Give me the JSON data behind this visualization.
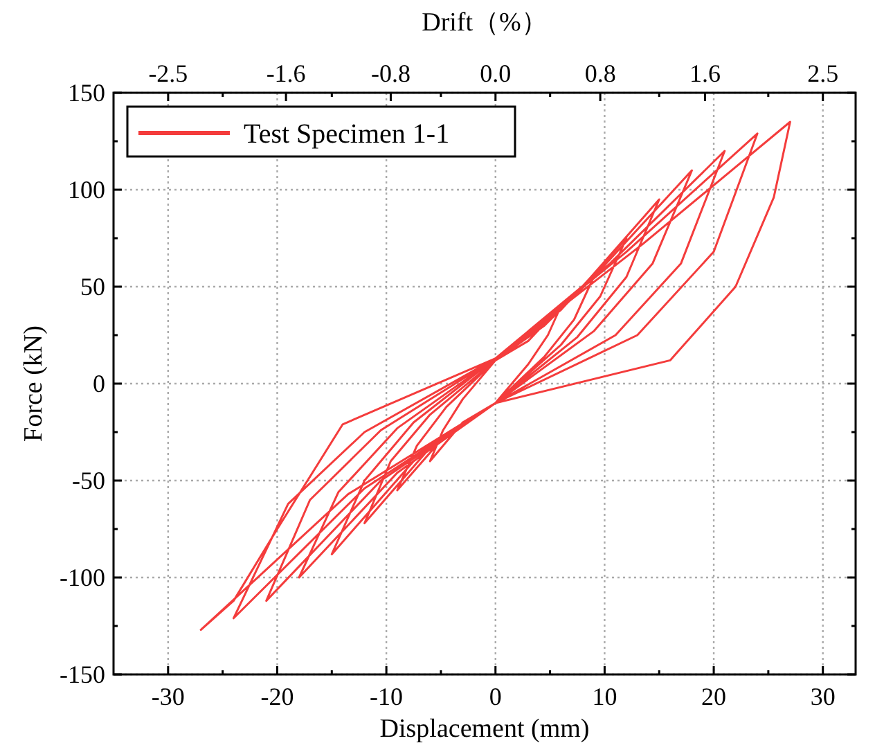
{
  "chart_data": {
    "type": "line",
    "xlabel": "Displacement (mm)",
    "ylabel": "Force (kN)",
    "x2label": "Drift（%）",
    "xlim": [
      -35,
      33
    ],
    "ylim": [
      -150,
      150
    ],
    "xticks": [
      -30,
      {
        "value": -25,
        "label": null
      },
      -20,
      {
        "value": -15,
        "label": null
      },
      -10,
      {
        "value": -5,
        "label": null
      },
      0,
      {
        "value": 5,
        "label": null
      },
      10,
      {
        "value": 15,
        "label": null
      },
      20,
      {
        "value": 25,
        "label": null
      },
      30
    ],
    "yticks": [
      -150,
      {
        "value": -125,
        "label": null
      },
      -100,
      {
        "value": -75,
        "label": null
      },
      -50,
      {
        "value": -25,
        "label": null
      },
      0,
      {
        "value": 25,
        "label": null
      },
      50,
      {
        "value": 75,
        "label": null
      },
      100,
      {
        "value": 125,
        "label": null
      },
      150
    ],
    "x2lim": [
      -2.917,
      2.75
    ],
    "x2ticks": [
      {
        "value": -2.5,
        "label": "-2.5"
      },
      {
        "value": -2.083,
        "label": null
      },
      {
        "value": -1.6,
        "label": "-1.6"
      },
      {
        "value": -1.25,
        "label": null
      },
      {
        "value": -0.8,
        "label": "-0.8"
      },
      {
        "value": -0.417,
        "label": null
      },
      {
        "value": 0,
        "label": "0.0"
      },
      {
        "value": 0.417,
        "label": null
      },
      {
        "value": 0.8,
        "label": "0.8"
      },
      {
        "value": 1.25,
        "label": null
      },
      {
        "value": 1.6,
        "label": "1.6"
      },
      {
        "value": 2.083,
        "label": null
      },
      {
        "value": 2.5,
        "label": "2.5"
      }
    ],
    "grid": true,
    "legend": "top left",
    "marker": "none",
    "line_style": "solid",
    "series": [
      {
        "name": "Test Specimen 1-1",
        "color": "#f43c3c",
        "x": [
          0,
          3,
          6,
          4.8,
          3,
          0,
          -3,
          -6,
          -4.8,
          -3,
          0,
          4.5,
          9,
          7.2,
          4.5,
          0,
          -4.5,
          -9,
          -7.2,
          -4.5,
          0,
          6,
          12,
          9.6,
          6,
          0,
          -6,
          -12,
          -9.6,
          -6,
          0,
          7.5,
          15,
          12,
          7.5,
          0,
          -7.5,
          -15,
          -12,
          -7.5,
          0,
          9,
          18,
          14.4,
          9,
          0,
          -9,
          -18,
          -14.4,
          -9,
          0,
          10.5,
          21,
          17,
          11,
          0,
          -10.5,
          -21,
          -17,
          -10.5,
          0,
          12,
          24,
          20,
          13,
          0,
          -12,
          -24,
          -19,
          -12,
          0,
          13.5,
          27,
          25.5,
          22,
          16,
          0,
          -13.5,
          -27,
          -24,
          -20,
          -14,
          0
        ],
        "values": [
          12,
          22,
          40,
          25,
          10,
          -10,
          -20,
          -40,
          -24,
          -8,
          12,
          30,
          55,
          33,
          14,
          -10,
          -26,
          -55,
          -32,
          -12,
          12,
          38,
          75,
          45,
          20,
          -10,
          -33,
          -72,
          -40,
          -16,
          12,
          47,
          95,
          55,
          24,
          -10,
          -40,
          -88,
          -50,
          -20,
          13,
          55,
          110,
          62,
          27,
          -10,
          -46,
          -100,
          -56,
          -23,
          13,
          62,
          120,
          62,
          25,
          -10,
          -50,
          -112,
          -60,
          -24,
          13,
          68,
          129,
          68,
          25,
          -10,
          -54,
          -121,
          -62,
          -25,
          13,
          72,
          135,
          96,
          50,
          12,
          -10,
          -57,
          -127,
          -112,
          -75,
          -21,
          13
        ]
      }
    ]
  }
}
